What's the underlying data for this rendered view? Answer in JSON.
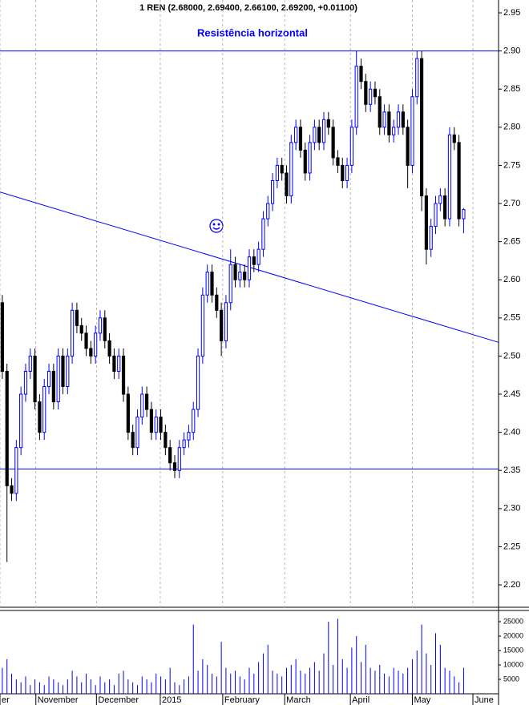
{
  "chart_data": {
    "type": "candlestick",
    "title": "1 REN (2.68000, 2.69400, 2.66100, 2.69200, +0.01100)",
    "annotation": "Resistência horizontal",
    "up_color": "#0000ff",
    "down_color": "#000000",
    "volume_color": "#0000ff",
    "line_color": "#0000ff",
    "grid": true,
    "xlim": [
      0,
      107
    ],
    "xticks": [
      {
        "value": 0,
        "label": "er"
      },
      {
        "value": 7.7,
        "label": "November"
      },
      {
        "value": 20.7,
        "label": "December"
      },
      {
        "value": 34.4,
        "label": "2015"
      },
      {
        "value": 47.8,
        "label": "February"
      },
      {
        "value": 61.1,
        "label": "March"
      },
      {
        "value": 75.2,
        "label": "April"
      },
      {
        "value": 88.5,
        "label": "May"
      },
      {
        "value": 101.5,
        "label": "June"
      }
    ],
    "ylim": [
      2.17,
      2.96
    ],
    "yticks": [
      {
        "value": 2.2,
        "label": "2.20"
      },
      2.25,
      {
        "value": 2.3,
        "label": "2.30"
      },
      2.35,
      {
        "value": 2.4,
        "label": "2.40"
      },
      2.45,
      {
        "value": 2.5,
        "label": "2.50"
      },
      2.55,
      {
        "value": 2.6,
        "label": "2.60"
      },
      2.65,
      {
        "value": 2.7,
        "label": "2.70"
      },
      2.75,
      {
        "value": 2.8,
        "label": "2.80"
      },
      2.85,
      {
        "value": 2.9,
        "label": "2.90"
      },
      2.95
    ],
    "vlim": [
      0,
      27000
    ],
    "vticks": [
      5000,
      10000,
      15000,
      20000,
      25000
    ],
    "hlines": [
      2.9,
      2.352
    ],
    "trendline": {
      "x": [
        0,
        107
      ],
      "y": [
        2.715,
        2.518
      ]
    },
    "open": [
      2.57,
      2.48,
      2.33,
      2.32,
      2.38,
      2.45,
      2.48,
      2.5,
      2.44,
      2.4,
      2.46,
      2.48,
      2.44,
      2.5,
      2.46,
      2.5,
      2.56,
      2.54,
      2.53,
      2.51,
      2.5,
      2.53,
      2.55,
      2.52,
      2.5,
      2.48,
      2.5,
      2.45,
      2.4,
      2.38,
      2.42,
      2.45,
      2.43,
      2.4,
      2.42,
      2.4,
      2.38,
      2.36,
      2.35,
      2.38,
      2.39,
      2.4,
      2.43,
      2.5,
      2.58,
      2.61,
      2.58,
      2.56,
      2.52,
      2.57,
      2.62,
      2.6,
      2.61,
      2.6,
      2.63,
      2.62,
      2.64,
      2.68,
      2.7,
      2.73,
      2.75,
      2.74,
      2.71,
      2.78,
      2.8,
      2.77,
      2.74,
      2.78,
      2.8,
      2.78,
      2.81,
      2.8,
      2.76,
      2.75,
      2.73,
      2.75,
      2.8,
      2.88,
      2.86,
      2.83,
      2.85,
      2.84,
      2.8,
      2.82,
      2.79,
      2.8,
      2.82,
      2.8,
      2.75,
      2.84,
      2.89,
      2.71,
      2.64,
      2.67,
      2.7,
      2.71,
      2.68,
      2.79,
      2.78,
      2.68
    ],
    "high": [
      2.58,
      2.49,
      2.34,
      2.39,
      2.46,
      2.49,
      2.51,
      2.51,
      2.45,
      2.47,
      2.49,
      2.49,
      2.51,
      2.51,
      2.51,
      2.57,
      2.57,
      2.55,
      2.54,
      2.52,
      2.54,
      2.56,
      2.56,
      2.53,
      2.51,
      2.51,
      2.51,
      2.46,
      2.41,
      2.43,
      2.46,
      2.46,
      2.44,
      2.43,
      2.43,
      2.41,
      2.39,
      2.37,
      2.39,
      2.4,
      2.41,
      2.44,
      2.51,
      2.59,
      2.62,
      2.62,
      2.59,
      2.57,
      2.58,
      2.64,
      2.63,
      2.62,
      2.62,
      2.64,
      2.64,
      2.65,
      2.69,
      2.71,
      2.74,
      2.76,
      2.76,
      2.75,
      2.79,
      2.81,
      2.81,
      2.78,
      2.79,
      2.81,
      2.81,
      2.82,
      2.82,
      2.81,
      2.77,
      2.76,
      2.76,
      2.81,
      2.9,
      2.89,
      2.87,
      2.86,
      2.86,
      2.85,
      2.83,
      2.83,
      2.81,
      2.83,
      2.83,
      2.81,
      2.85,
      2.9,
      2.9,
      2.72,
      2.68,
      2.71,
      2.72,
      2.72,
      2.8,
      2.8,
      2.79,
      2.694
    ],
    "low": [
      2.47,
      2.23,
      2.31,
      2.31,
      2.37,
      2.44,
      2.47,
      2.43,
      2.39,
      2.39,
      2.45,
      2.43,
      2.43,
      2.45,
      2.45,
      2.49,
      2.53,
      2.52,
      2.5,
      2.49,
      2.49,
      2.52,
      2.51,
      2.49,
      2.47,
      2.47,
      2.44,
      2.39,
      2.37,
      2.37,
      2.41,
      2.42,
      2.39,
      2.39,
      2.39,
      2.37,
      2.35,
      2.34,
      2.34,
      2.37,
      2.38,
      2.39,
      2.42,
      2.49,
      2.57,
      2.57,
      2.55,
      2.5,
      2.51,
      2.56,
      2.59,
      2.59,
      2.59,
      2.59,
      2.61,
      2.61,
      2.63,
      2.67,
      2.69,
      2.72,
      2.73,
      2.7,
      2.7,
      2.77,
      2.76,
      2.73,
      2.73,
      2.77,
      2.77,
      2.77,
      2.79,
      2.75,
      2.74,
      2.72,
      2.72,
      2.74,
      2.79,
      2.85,
      2.82,
      2.82,
      2.83,
      2.79,
      2.79,
      2.78,
      2.78,
      2.79,
      2.79,
      2.72,
      2.74,
      2.83,
      2.69,
      2.62,
      2.63,
      2.66,
      2.69,
      2.67,
      2.67,
      2.77,
      2.67,
      2.661
    ],
    "close": [
      2.48,
      2.33,
      2.32,
      2.38,
      2.45,
      2.48,
      2.5,
      2.44,
      2.4,
      2.46,
      2.48,
      2.44,
      2.5,
      2.46,
      2.5,
      2.56,
      2.54,
      2.53,
      2.51,
      2.5,
      2.53,
      2.55,
      2.52,
      2.5,
      2.48,
      2.5,
      2.45,
      2.4,
      2.38,
      2.42,
      2.45,
      2.43,
      2.4,
      2.42,
      2.4,
      2.38,
      2.36,
      2.35,
      2.38,
      2.39,
      2.4,
      2.43,
      2.5,
      2.58,
      2.61,
      2.58,
      2.56,
      2.52,
      2.57,
      2.62,
      2.6,
      2.61,
      2.6,
      2.63,
      2.62,
      2.64,
      2.68,
      2.7,
      2.73,
      2.75,
      2.74,
      2.71,
      2.78,
      2.8,
      2.77,
      2.74,
      2.78,
      2.8,
      2.78,
      2.81,
      2.8,
      2.76,
      2.75,
      2.73,
      2.75,
      2.8,
      2.88,
      2.86,
      2.83,
      2.85,
      2.84,
      2.8,
      2.82,
      2.79,
      2.8,
      2.82,
      2.8,
      2.75,
      2.84,
      2.89,
      2.71,
      2.64,
      2.67,
      2.7,
      2.71,
      2.68,
      2.79,
      2.78,
      2.68,
      2.692
    ],
    "volume": [
      9000,
      12000,
      7000,
      5000,
      4000,
      6000,
      3000,
      5000,
      4000,
      3000,
      6000,
      5000,
      4000,
      3000,
      5000,
      8000,
      6000,
      4000,
      7000,
      5000,
      3000,
      6000,
      4000,
      5000,
      3000,
      7000,
      8000,
      5000,
      4000,
      3000,
      6000,
      5000,
      4000,
      7000,
      6000,
      5000,
      9000,
      4000,
      3000,
      5000,
      6000,
      24000,
      8000,
      12000,
      10000,
      7000,
      6000,
      18000,
      9000,
      7000,
      8000,
      6000,
      5000,
      9000,
      7000,
      11000,
      14000,
      17000,
      8000,
      7000,
      6000,
      9000,
      10000,
      12000,
      8000,
      7000,
      9000,
      11000,
      8000,
      14000,
      25000,
      10000,
      26000,
      12000,
      9000,
      16000,
      20000,
      11000,
      17000,
      9000,
      8000,
      10000,
      7000,
      6000,
      9000,
      8000,
      7000,
      9000,
      12000,
      15000,
      24000,
      14000,
      10000,
      21000,
      17000,
      9000,
      8000,
      6000,
      4000,
      9000
    ]
  }
}
